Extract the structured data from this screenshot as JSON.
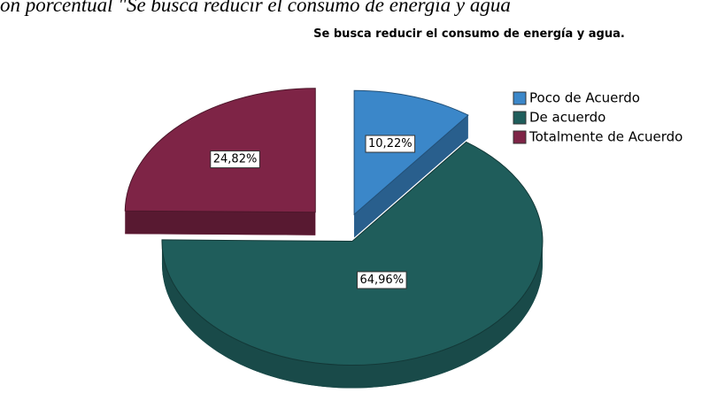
{
  "caption": "ón porcentual \"Se busca reducir el consumo de energía y agua",
  "chart_data": {
    "type": "pie",
    "title": "Se busca reducir el consumo de energía y agua.",
    "categories": [
      "Poco de Acuerdo",
      "De acuerdo",
      "Totalmente de Acuerdo"
    ],
    "values": [
      10.22,
      64.96,
      24.82
    ],
    "value_labels": [
      "10,22%",
      "64,96%",
      "24,82%"
    ],
    "colors": [
      "#3b87c9",
      "#1f5d5b",
      "#7e2446"
    ],
    "legend": "right"
  }
}
